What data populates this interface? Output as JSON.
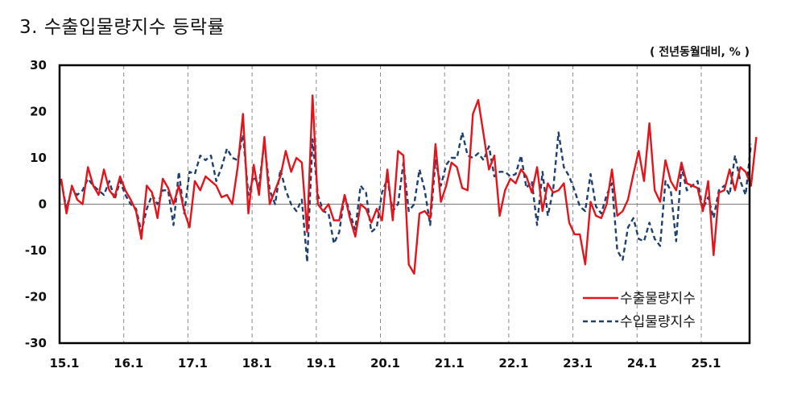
{
  "header": {
    "title": "3. 수출입물량지수  등락률",
    "unit": "( 전년동월대비, % )"
  },
  "colors": {
    "export": "#e3141b",
    "import": "#1f3f6e",
    "axis": "#000000",
    "zero_line": "#7a7a7a",
    "grid": "#8a8a8a"
  },
  "chart_data": {
    "type": "line",
    "title": "3. 수출입물량지수  등락률",
    "subtitle": "( 전년동월대비, % )",
    "xlabel": "",
    "ylabel": "전년동월대비, %",
    "ylim": [
      -30,
      30
    ],
    "yticks": [
      30,
      20,
      10,
      0,
      -10,
      -20,
      -30
    ],
    "x_tick_labels": [
      "15.1",
      "16.1",
      "17.1",
      "18.1",
      "19.1",
      "20.1",
      "21.1",
      "22.1",
      "23.1",
      "24.1",
      "25.1"
    ],
    "x_start": "2015.1",
    "frequency": "monthly",
    "grid": "vertical dashed at each January",
    "legend_position": "lower right inside plot",
    "legend": [
      "수출물량지수",
      "수입물량지수"
    ],
    "series": [
      {
        "name": "수출물량지수",
        "style": "solid",
        "values": [
          5.5,
          -2,
          4,
          1,
          0,
          8,
          4,
          2,
          7.5,
          3,
          1.5,
          6,
          3,
          1,
          -1.5,
          -7.5,
          4,
          2.5,
          -3,
          5.5,
          3.5,
          0,
          4,
          -1.5,
          -5,
          5,
          3,
          6,
          5,
          4,
          1.5,
          2,
          0,
          8,
          19.5,
          -2,
          8.5,
          2,
          14.5,
          0,
          3,
          6,
          11.5,
          7,
          10,
          9,
          -6,
          23.5,
          0,
          -1.5,
          0,
          -3.5,
          -3.5,
          2,
          -3,
          -7,
          0,
          -1,
          -4,
          -1,
          -3.5,
          7.5,
          -3.5,
          11.5,
          10.5,
          -13,
          -15,
          -2,
          -1.5,
          -3,
          13,
          0.5,
          4,
          9,
          8,
          3.5,
          3,
          19.5,
          22.5,
          15,
          7.5,
          10.5,
          -2.5,
          3,
          5.5,
          4.5,
          7.5,
          6,
          2.5,
          8,
          -1.5,
          4.5,
          2.5,
          3,
          4.5,
          -4,
          -6.5,
          -6.5,
          -13,
          0.5,
          -2.5,
          -3,
          0,
          7.5,
          -2.5,
          -1.5,
          1,
          6.5,
          11.5,
          5,
          17.5,
          3,
          0.5,
          9.5,
          5,
          3,
          9,
          4.5,
          4,
          3.5,
          -1.5,
          5,
          -11,
          2.5,
          3,
          7.5,
          3,
          8,
          7,
          4,
          14.5
        ]
      },
      {
        "name": "수입물량지수",
        "style": "dashed",
        "values": [
          5,
          -1,
          3.5,
          2,
          3,
          5.5,
          4,
          3,
          2,
          5,
          1,
          5,
          2,
          0,
          -1,
          -6,
          -1,
          2,
          0,
          3,
          3,
          -4.5,
          7,
          -2,
          7,
          6.5,
          10.5,
          9.5,
          10.5,
          5,
          8,
          12,
          10,
          9.5,
          15,
          2,
          6,
          4,
          13.5,
          3,
          0,
          7.5,
          3,
          0,
          -1.5,
          1,
          -12.5,
          14,
          2,
          -1.5,
          -2,
          -8.5,
          -6,
          2,
          -2,
          -5.5,
          4,
          2.5,
          -6,
          -5,
          2.5,
          5.5,
          -1.5,
          0,
          9,
          -1.5,
          0,
          7.5,
          3,
          -4.5,
          9.5,
          4,
          8.5,
          10,
          10,
          15.5,
          10.5,
          10,
          11,
          9.5,
          12.5,
          6,
          7,
          7,
          6,
          6.5,
          10.5,
          3.5,
          5,
          -4.5,
          7,
          -2.5,
          3,
          15.5,
          8,
          6,
          3,
          -0.5,
          -1.5,
          6.5,
          -0.5,
          -2,
          2,
          4.5,
          -10,
          -12,
          -5,
          -3,
          -7.5,
          -8,
          -4,
          -7.5,
          -9,
          5,
          3,
          -8,
          8,
          3,
          4,
          5,
          -1,
          1.5,
          -3,
          3,
          4,
          2,
          10.5,
          5,
          2,
          13
        ]
      }
    ]
  },
  "legend": {
    "export_label": "수출물량지수",
    "import_label": "수입물량지수"
  },
  "axis": {
    "y_labels": [
      "30",
      "20",
      "10",
      "0",
      "-10",
      "-20",
      "-30"
    ],
    "x_labels": [
      "15.1",
      "16.1",
      "17.1",
      "18.1",
      "19.1",
      "20.1",
      "21.1",
      "22.1",
      "23.1",
      "24.1",
      "25.1"
    ]
  }
}
